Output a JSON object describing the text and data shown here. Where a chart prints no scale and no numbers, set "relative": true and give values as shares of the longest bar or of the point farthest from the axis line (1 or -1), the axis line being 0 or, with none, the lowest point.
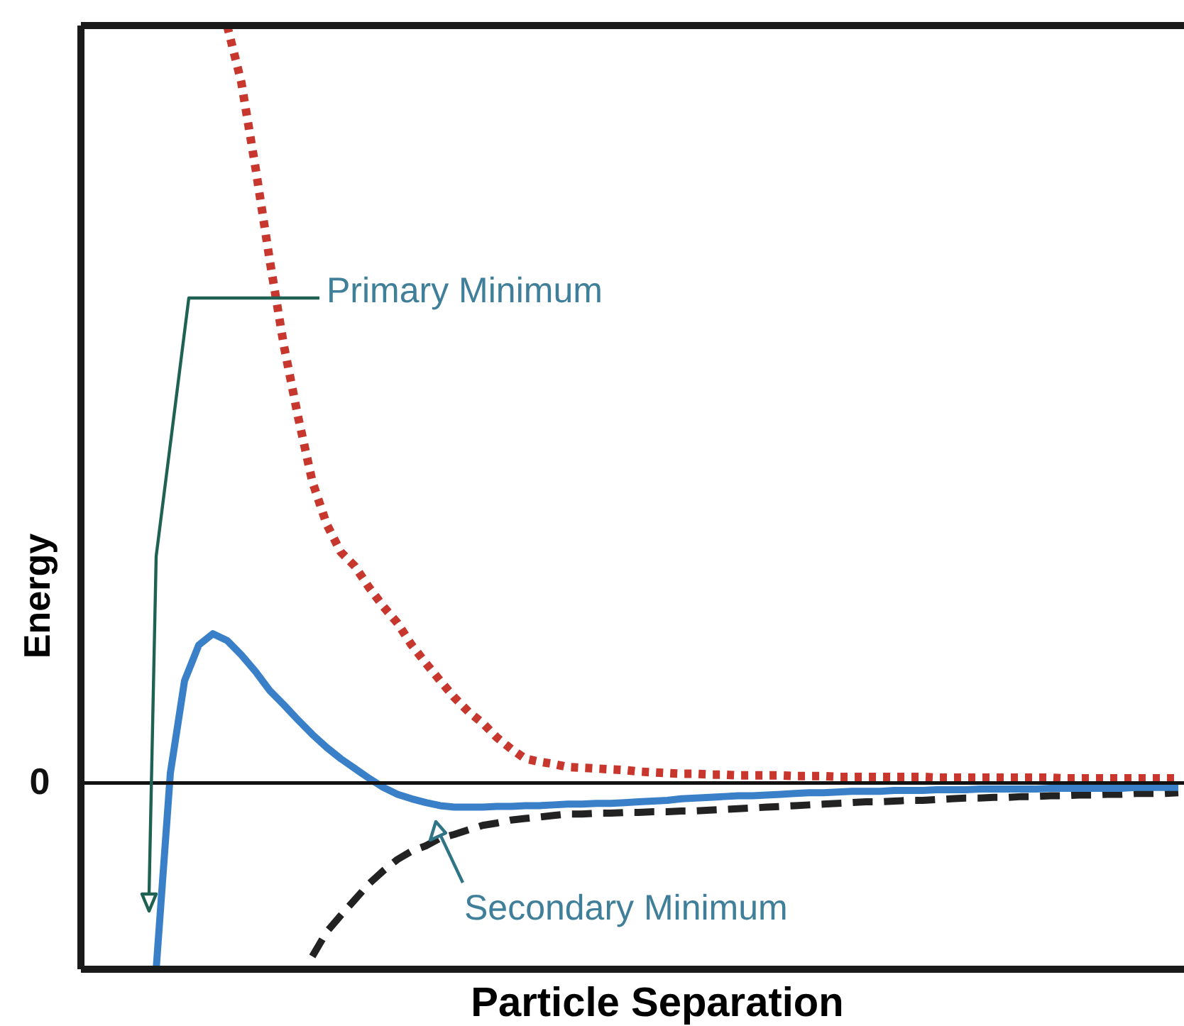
{
  "chart_data": {
    "type": "line",
    "relative": true,
    "xlabel": "Particle Separation",
    "ylabel": "Energy",
    "tick_labels": false,
    "categories": [
      null,
      null,
      null,
      null,
      null,
      null,
      null,
      null,
      null,
      null,
      null,
      null,
      null,
      null,
      null,
      null,
      null,
      null,
      null,
      null,
      null,
      null,
      null,
      null,
      null,
      null,
      null,
      null,
      null,
      null,
      null,
      null,
      null,
      null,
      null,
      null,
      null,
      null,
      null,
      null,
      null,
      null,
      null,
      null,
      null,
      null,
      null,
      null,
      null,
      null,
      null,
      null,
      null,
      null,
      null,
      null,
      null,
      null,
      null,
      null,
      null,
      null,
      null,
      null,
      null,
      null,
      null,
      null,
      null,
      null,
      null,
      null,
      null,
      null,
      null,
      null,
      null,
      null
    ],
    "series": [
      {
        "color": "#c8372d",
        "line_style": "dotted",
        "values": [
          null,
          null,
          null,
          null,
          null,
          null,
          null,
          null,
          null,
          null,
          1.0,
          0.925,
          0.812,
          0.69,
          0.577,
          0.483,
          0.398,
          0.342,
          0.305,
          0.286,
          0.258,
          0.233,
          0.211,
          0.182,
          0.158,
          0.135,
          0.113,
          0.094,
          0.079,
          0.06,
          0.045,
          0.032,
          0.028,
          0.025,
          0.021,
          0.02,
          0.019,
          0.018,
          0.017,
          0.015,
          0.014,
          0.013,
          0.012,
          0.012,
          0.011,
          0.011,
          0.01,
          0.01,
          0.01,
          0.01,
          0.009,
          0.009,
          0.009,
          0.008,
          0.008,
          0.008,
          0.008,
          0.008,
          0.008,
          0.008,
          0.007,
          0.007,
          0.007,
          0.007,
          0.007,
          0.007,
          0.007,
          0.007,
          0.007,
          0.006,
          0.006,
          0.006,
          0.006,
          0.006,
          0.006,
          0.006,
          0.006,
          0.006
        ]
      },
      {
        "color": "#222222",
        "line_style": "dashed",
        "values": [
          null,
          null,
          null,
          null,
          null,
          null,
          null,
          null,
          null,
          null,
          null,
          null,
          null,
          null,
          null,
          null,
          -0.229,
          -0.197,
          -0.175,
          -0.154,
          -0.133,
          -0.116,
          -0.101,
          -0.09,
          -0.083,
          -0.073,
          -0.068,
          -0.062,
          -0.056,
          -0.053,
          -0.049,
          -0.047,
          -0.045,
          -0.043,
          -0.041,
          -0.041,
          -0.04,
          -0.04,
          -0.039,
          -0.039,
          -0.038,
          -0.038,
          -0.037,
          -0.037,
          -0.036,
          -0.035,
          -0.034,
          -0.033,
          -0.032,
          -0.031,
          -0.03,
          -0.029,
          -0.028,
          -0.027,
          -0.026,
          -0.025,
          -0.025,
          -0.024,
          -0.023,
          -0.023,
          -0.022,
          -0.021,
          -0.02,
          -0.02,
          -0.019,
          -0.019,
          -0.018,
          -0.018,
          -0.017,
          -0.017,
          -0.016,
          -0.016,
          -0.015,
          -0.015,
          -0.014,
          -0.014,
          -0.014,
          -0.013
        ]
      },
      {
        "color": "#3a80c8",
        "line_style": "solid",
        "values": [
          null,
          null,
          null,
          null,
          null,
          -0.246,
          0.013,
          0.135,
          0.182,
          0.197,
          0.188,
          0.169,
          0.147,
          0.122,
          0.103,
          0.083,
          0.064,
          0.047,
          0.032,
          0.019,
          0.006,
          -0.006,
          -0.015,
          -0.021,
          -0.026,
          -0.03,
          -0.032,
          -0.032,
          -0.032,
          -0.031,
          -0.031,
          -0.03,
          -0.03,
          -0.029,
          -0.028,
          -0.028,
          -0.027,
          -0.027,
          -0.026,
          -0.025,
          -0.024,
          -0.023,
          -0.021,
          -0.02,
          -0.019,
          -0.018,
          -0.017,
          -0.017,
          -0.016,
          -0.015,
          -0.014,
          -0.013,
          -0.013,
          -0.012,
          -0.011,
          -0.011,
          -0.011,
          -0.01,
          -0.01,
          -0.01,
          -0.009,
          -0.009,
          -0.009,
          -0.008,
          -0.008,
          -0.008,
          -0.008,
          -0.008,
          -0.007,
          -0.007,
          -0.007,
          -0.007,
          -0.007,
          -0.007,
          -0.006,
          -0.006,
          -0.006,
          -0.006
        ]
      }
    ],
    "ref_lines": [
      {
        "axis": "y",
        "value": 0,
        "label": "0",
        "color": "#111111"
      }
    ],
    "annotations": [
      "Primary Minimum",
      "Secondary Minimum"
    ]
  }
}
